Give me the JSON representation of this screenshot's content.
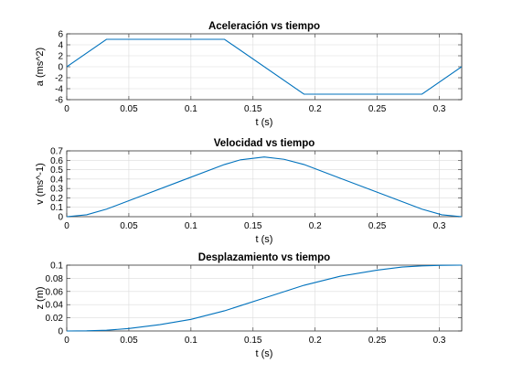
{
  "figure": {
    "background": "#ffffff",
    "line_color": "#0072BD"
  },
  "chart_data": [
    {
      "type": "line",
      "title": "Aceleración vs tiempo",
      "xlabel": "t (s)",
      "ylabel": "a (ms^2)",
      "xlim": [
        0,
        0.318
      ],
      "ylim": [
        -6,
        6
      ],
      "xticks": [
        0,
        0.05,
        0.1,
        0.15,
        0.2,
        0.25,
        0.3
      ],
      "yticks": [
        -6,
        -4,
        -2,
        0,
        2,
        4,
        6
      ],
      "xtick_labels": [
        "0",
        "0.05",
        "0.1",
        "0.15",
        "0.2",
        "0.25",
        "0.3"
      ],
      "ytick_labels": [
        "-6",
        "-4",
        "-2",
        "0",
        "2",
        "4",
        "6"
      ],
      "grid": true,
      "series": [
        {
          "x": [
            0,
            0.032,
            0.127,
            0.191,
            0.286,
            0.318
          ],
          "y": [
            0,
            5,
            5,
            -5,
            -5,
            0
          ]
        }
      ]
    },
    {
      "type": "line",
      "title": "Velocidad vs tiempo",
      "xlabel": "t (s)",
      "ylabel": "v (ms^-1)",
      "xlim": [
        0,
        0.318
      ],
      "ylim": [
        0,
        0.7
      ],
      "xticks": [
        0,
        0.05,
        0.1,
        0.15,
        0.2,
        0.25,
        0.3
      ],
      "yticks": [
        0,
        0.1,
        0.2,
        0.3,
        0.4,
        0.5,
        0.6,
        0.7
      ],
      "xtick_labels": [
        "0",
        "0.05",
        "0.1",
        "0.15",
        "0.2",
        "0.25",
        "0.3"
      ],
      "ytick_labels": [
        "0",
        "0.1",
        "0.2",
        "0.3",
        "0.4",
        "0.5",
        "0.6",
        "0.7"
      ],
      "grid": true,
      "series": [
        {
          "x": [
            0,
            0.016,
            0.032,
            0.06,
            0.09,
            0.127,
            0.14,
            0.159,
            0.175,
            0.191,
            0.22,
            0.25,
            0.286,
            0.302,
            0.318
          ],
          "y": [
            0,
            0.02,
            0.08,
            0.22,
            0.37,
            0.555,
            0.605,
            0.635,
            0.61,
            0.555,
            0.41,
            0.26,
            0.08,
            0.02,
            0
          ]
        }
      ]
    },
    {
      "type": "line",
      "title": "Desplazamiento vs tiempo",
      "xlabel": "t (s)",
      "ylabel": "z (m)",
      "xlim": [
        0,
        0.318
      ],
      "ylim": [
        0,
        0.1
      ],
      "xticks": [
        0,
        0.05,
        0.1,
        0.15,
        0.2,
        0.25,
        0.3
      ],
      "yticks": [
        0,
        0.02,
        0.04,
        0.06,
        0.08,
        0.1
      ],
      "xtick_labels": [
        "0",
        "0.05",
        "0.1",
        "0.15",
        "0.2",
        "0.25",
        "0.3"
      ],
      "ytick_labels": [
        "0",
        "0.02",
        "0.04",
        "0.06",
        "0.08",
        "0.1"
      ],
      "grid": true,
      "series": [
        {
          "x": [
            0,
            0.016,
            0.032,
            0.05,
            0.075,
            0.1,
            0.127,
            0.159,
            0.191,
            0.22,
            0.25,
            0.27,
            0.286,
            0.302,
            0.318
          ],
          "y": [
            0,
            0.0002,
            0.0012,
            0.0037,
            0.0097,
            0.0176,
            0.0306,
            0.05,
            0.0694,
            0.0831,
            0.0925,
            0.0971,
            0.0988,
            0.0998,
            0.1
          ]
        }
      ]
    }
  ]
}
